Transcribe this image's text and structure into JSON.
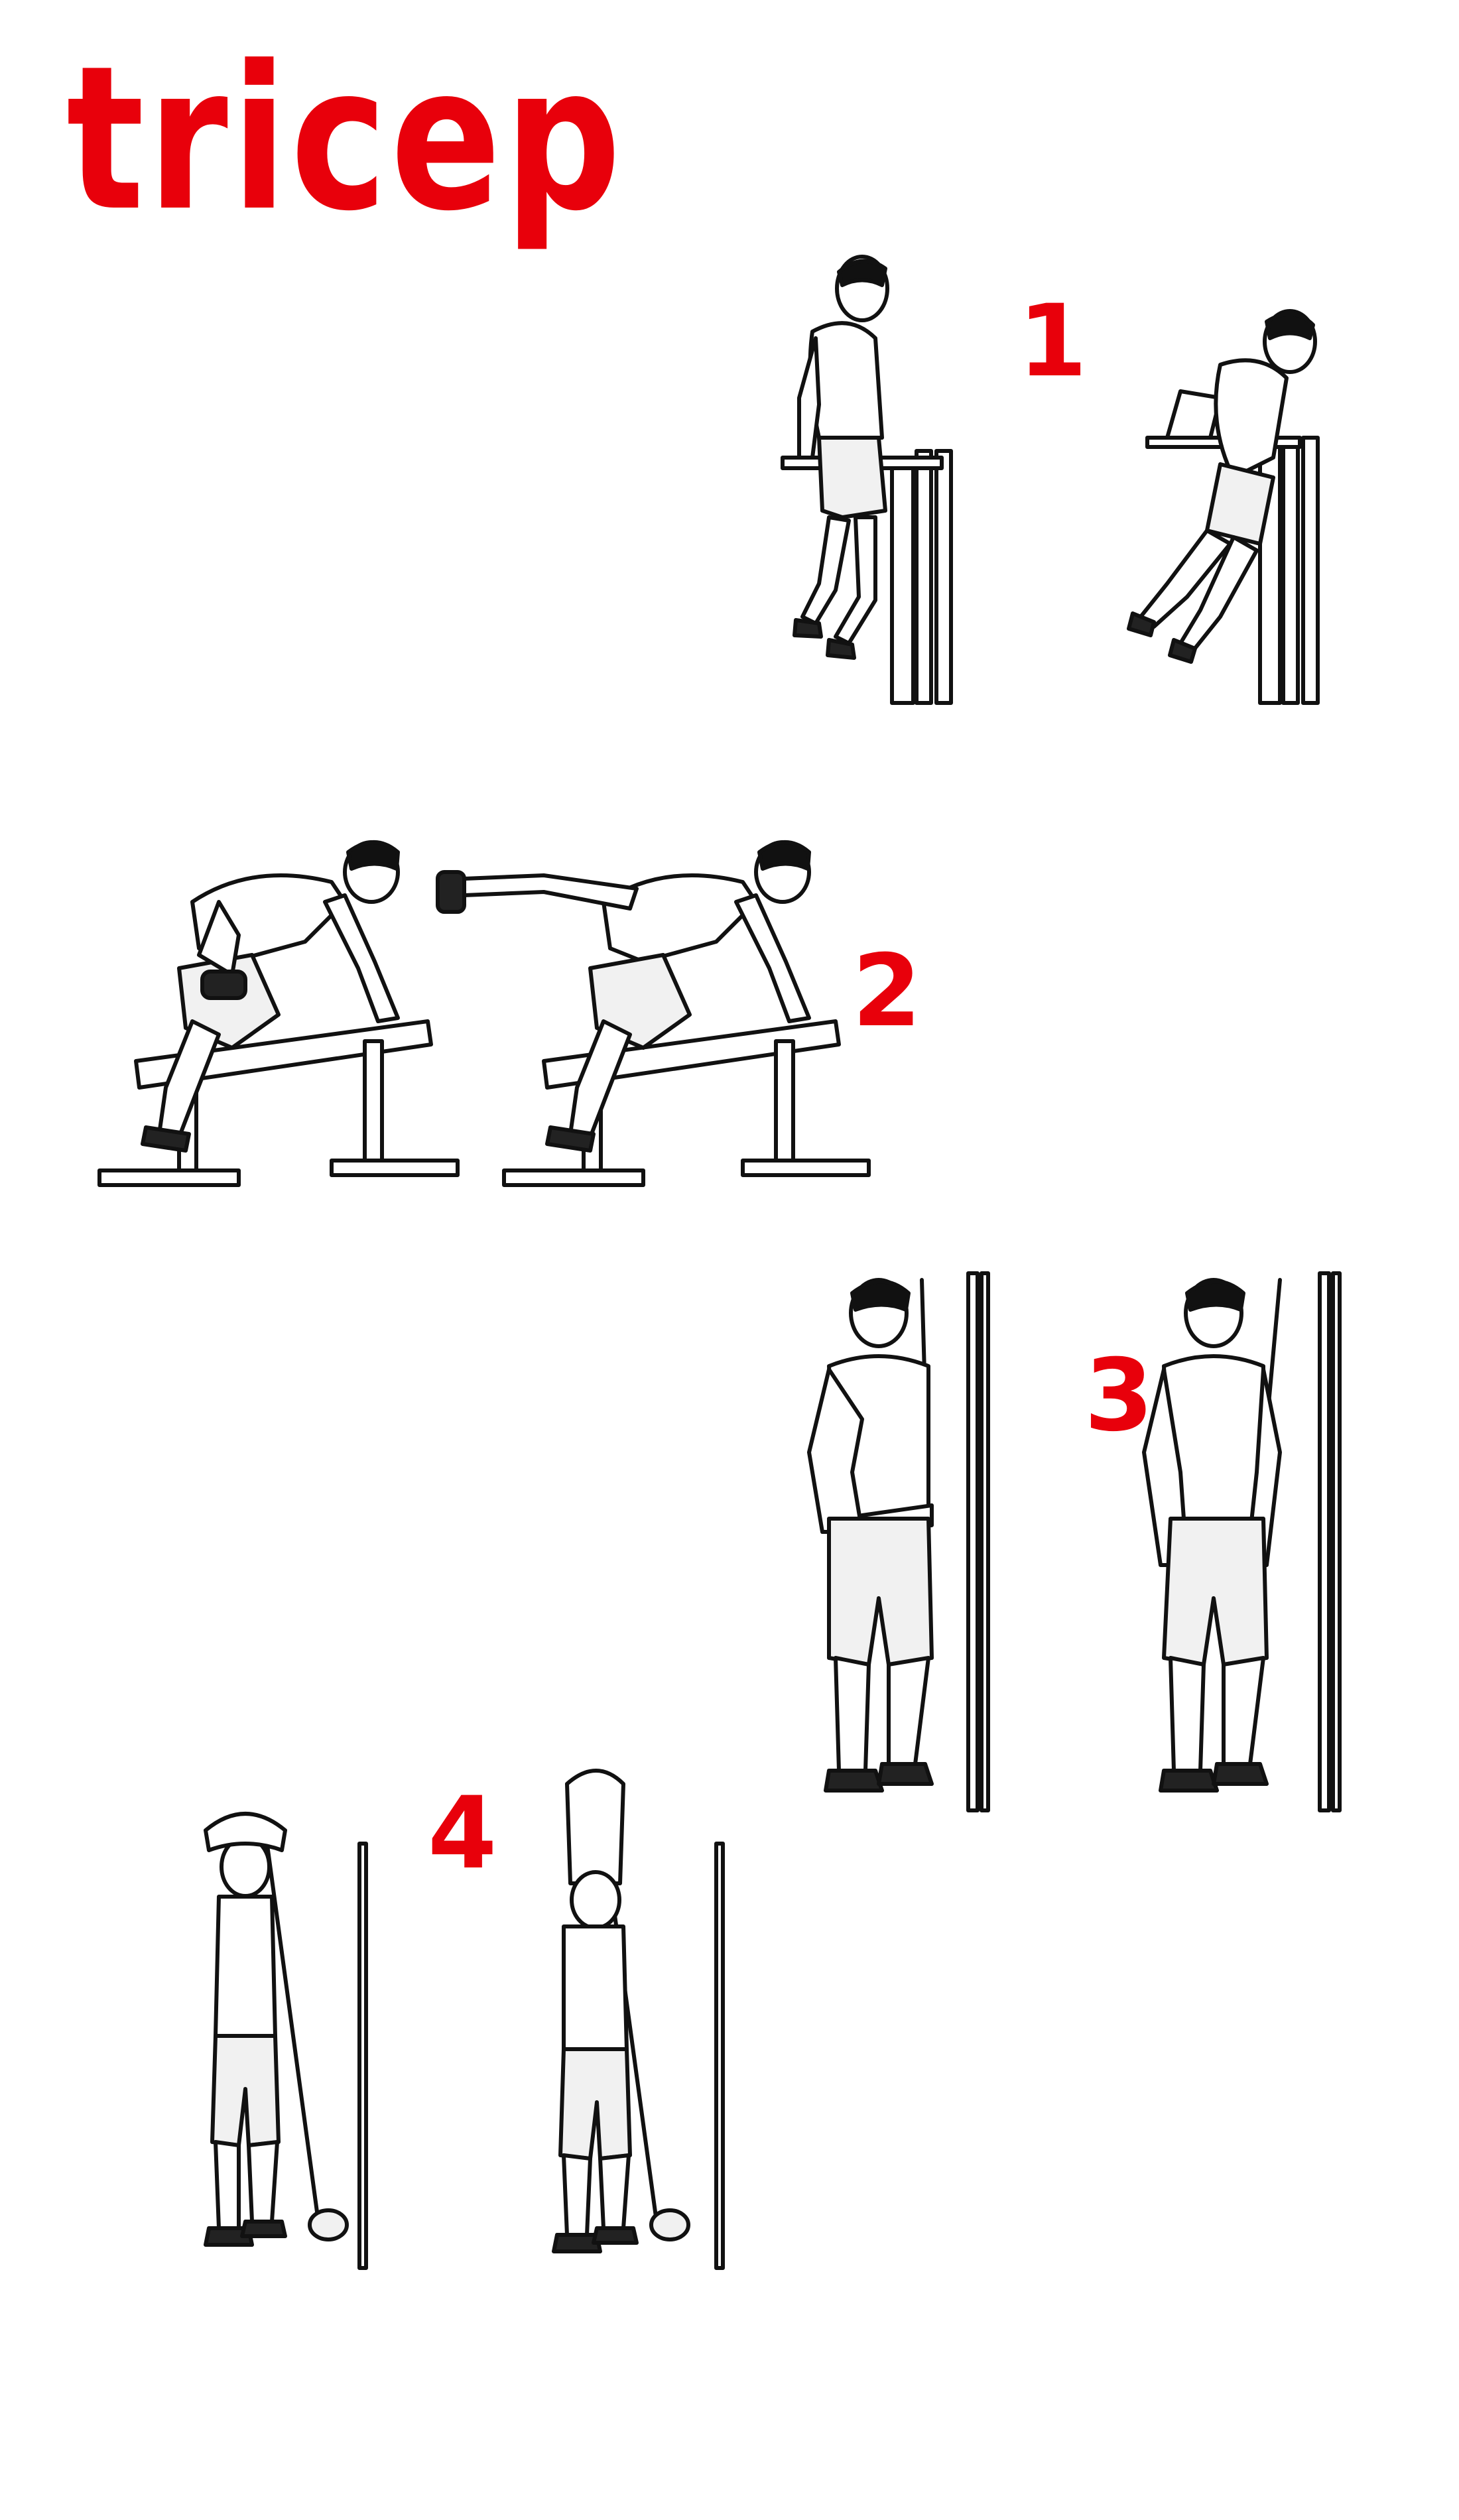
{
  "title": "tricep",
  "colors": {
    "accent": "#e8000b",
    "ink": "#111111",
    "background": "#ffffff"
  },
  "exercises": [
    {
      "number": "1",
      "illustration": "bench-dip-figures"
    },
    {
      "number": "2",
      "illustration": "dumbbell-kickback-figures"
    },
    {
      "number": "3",
      "illustration": "cable-pushdown-figures"
    },
    {
      "number": "4",
      "illustration": "overhead-cable-extension-figures"
    }
  ]
}
